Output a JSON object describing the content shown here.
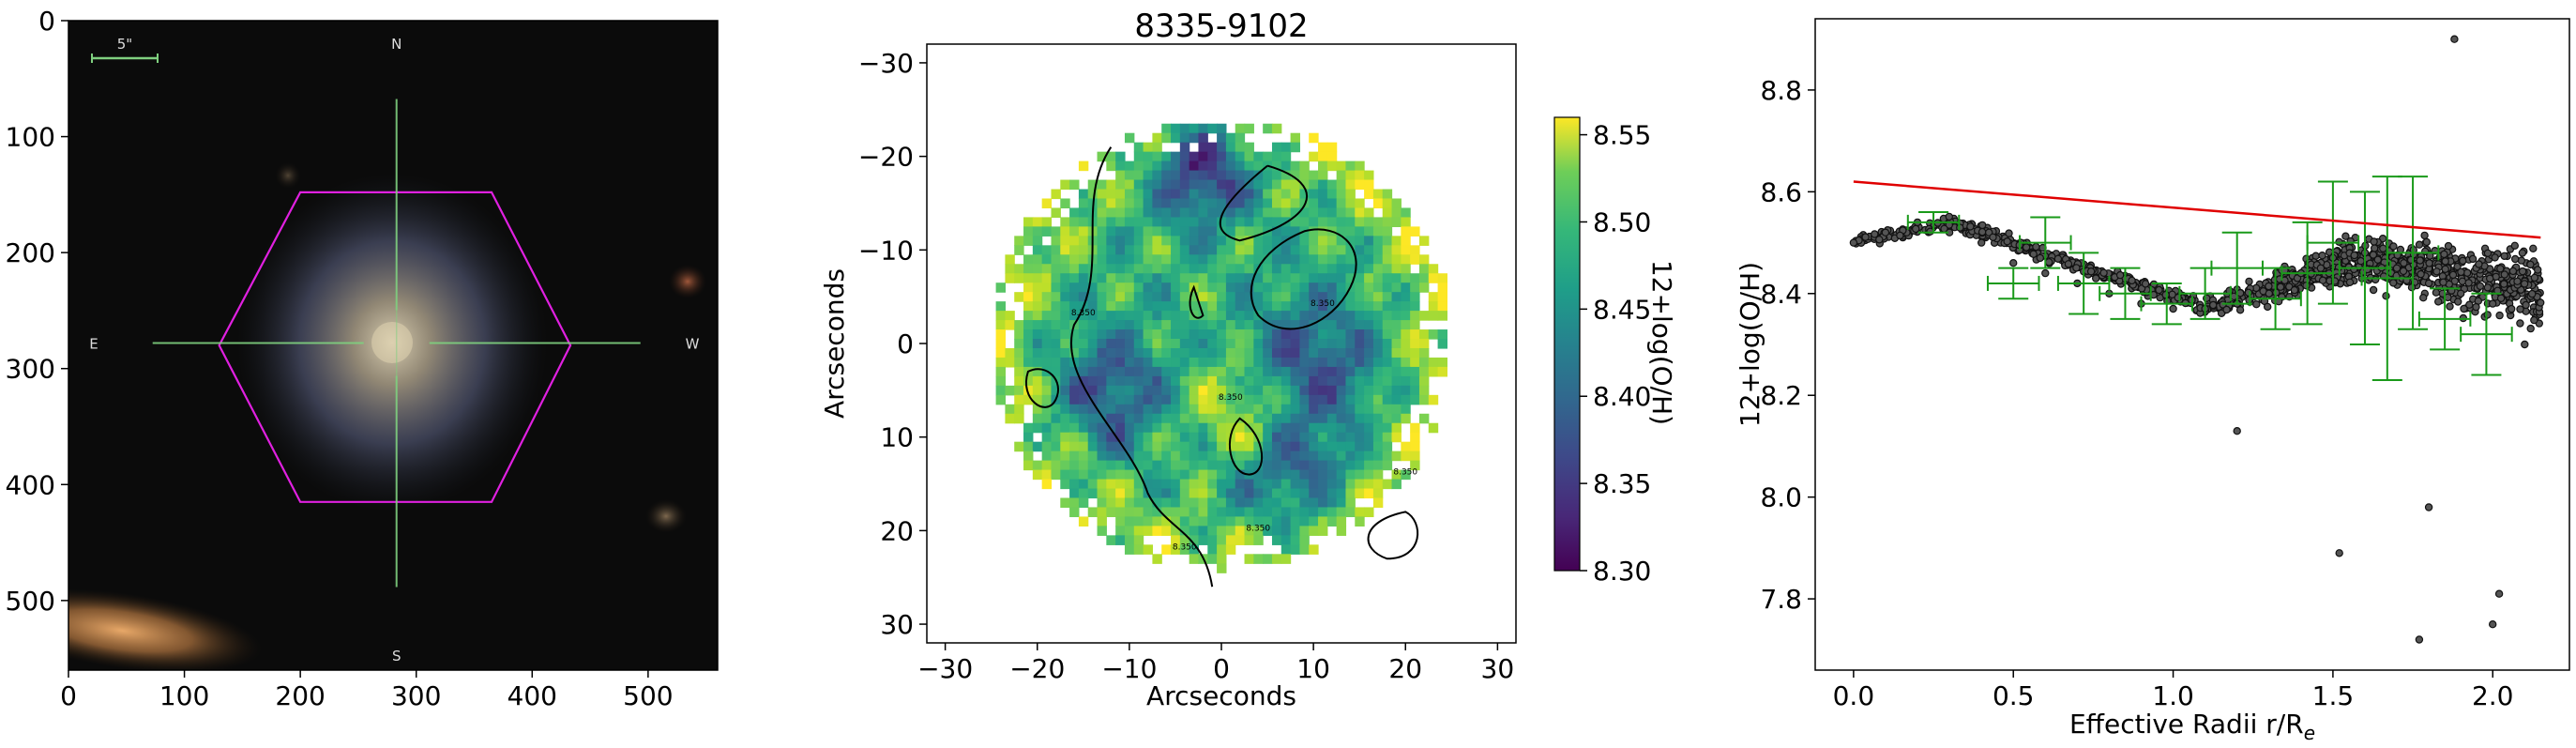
{
  "figure": {
    "background": "#ffffff"
  },
  "chart_data": [
    {
      "type": "image",
      "description": "SDSS optical cutout with MaNGA hexagonal IFU footprint",
      "title": "",
      "xlabel": "",
      "ylabel": "",
      "xlim": [
        0,
        560
      ],
      "ylim": [
        560,
        0
      ],
      "xticks": [
        "0",
        "100",
        "200",
        "300",
        "400",
        "500"
      ],
      "yticks": [
        "0",
        "100",
        "200",
        "300",
        "400",
        "500"
      ],
      "scale_bar_label": "5\"",
      "compass": {
        "north": "N",
        "south": "S",
        "east": "E",
        "west": "W"
      },
      "galaxy_center": [
        283,
        278
      ],
      "hexagon_vertices": [
        [
          200,
          148
        ],
        [
          365,
          148
        ],
        [
          433,
          280
        ],
        [
          365,
          415
        ],
        [
          200,
          415
        ],
        [
          130,
          280
        ]
      ],
      "colors": {
        "hexagon": "#e020e0",
        "crosshair": "#7fd07f",
        "scale_bar": "#7fd07f",
        "background": "#0b0b0b"
      }
    },
    {
      "type": "heatmap",
      "title": "8335-9102",
      "xlabel": "Arcseconds",
      "ylabel": "Arcseconds",
      "xlim": [
        -32,
        32
      ],
      "ylim": [
        32,
        -32
      ],
      "xticks": [
        "−30",
        "−20",
        "−10",
        "0",
        "10",
        "20",
        "30"
      ],
      "yticks": [
        "−30",
        "−20",
        "−10",
        "0",
        "10",
        "20",
        "30"
      ],
      "colorbar": {
        "label": "12+log(O/H)",
        "range": [
          8.3,
          8.56
        ],
        "ticks": [
          "8.30",
          "8.35",
          "8.40",
          "8.45",
          "8.50",
          "8.55"
        ],
        "colormap": "viridis"
      },
      "contour_level_label": "8.350",
      "extent_radius_arcsec": 24,
      "pixel_size_arcsec": 1
    },
    {
      "type": "scatter",
      "title": "",
      "xlabel": "Effective Radii r/R",
      "xlabel_sub": "e",
      "ylabel": "12+log(O/H)",
      "xlim": [
        -0.12,
        2.24
      ],
      "ylim": [
        7.66,
        8.94
      ],
      "xticks": [
        "0.0",
        "0.5",
        "1.0",
        "1.5",
        "2.0"
      ],
      "yticks": [
        "7.8",
        "8.0",
        "8.2",
        "8.4",
        "8.6",
        "8.8"
      ],
      "fit_line": {
        "x": [
          0.0,
          2.15
        ],
        "y": [
          8.62,
          8.51
        ],
        "color": "#e00000"
      },
      "binned_errorbars": [
        {
          "x": 0.25,
          "y": 8.54,
          "xerr": 0.08,
          "yerr": 0.02
        },
        {
          "x": 0.5,
          "y": 8.42,
          "xerr": 0.08,
          "yerr": 0.03
        },
        {
          "x": 0.6,
          "y": 8.5,
          "xerr": 0.08,
          "yerr": 0.05
        },
        {
          "x": 0.72,
          "y": 8.42,
          "xerr": 0.08,
          "yerr": 0.06
        },
        {
          "x": 0.85,
          "y": 8.4,
          "xerr": 0.08,
          "yerr": 0.05
        },
        {
          "x": 0.98,
          "y": 8.38,
          "xerr": 0.08,
          "yerr": 0.04
        },
        {
          "x": 1.1,
          "y": 8.4,
          "xerr": 0.08,
          "yerr": 0.05
        },
        {
          "x": 1.2,
          "y": 8.45,
          "xerr": 0.08,
          "yerr": 0.07
        },
        {
          "x": 1.32,
          "y": 8.39,
          "xerr": 0.08,
          "yerr": 0.06
        },
        {
          "x": 1.42,
          "y": 8.44,
          "xerr": 0.08,
          "yerr": 0.1
        },
        {
          "x": 1.5,
          "y": 8.5,
          "xerr": 0.08,
          "yerr": 0.12
        },
        {
          "x": 1.6,
          "y": 8.45,
          "xerr": 0.08,
          "yerr": 0.15
        },
        {
          "x": 1.67,
          "y": 8.43,
          "xerr": 0.08,
          "yerr": 0.2
        },
        {
          "x": 1.75,
          "y": 8.48,
          "xerr": 0.08,
          "yerr": 0.15
        },
        {
          "x": 1.85,
          "y": 8.35,
          "xerr": 0.08,
          "yerr": 0.06
        },
        {
          "x": 1.98,
          "y": 8.32,
          "xerr": 0.08,
          "yerr": 0.08
        }
      ],
      "scatter_points_sample": [
        {
          "x": 0.0,
          "y": 8.5
        },
        {
          "x": 0.1,
          "y": 8.52
        },
        {
          "x": 0.2,
          "y": 8.54
        },
        {
          "x": 0.3,
          "y": 8.52
        },
        {
          "x": 0.4,
          "y": 8.5
        },
        {
          "x": 0.5,
          "y": 8.46
        },
        {
          "x": 0.6,
          "y": 8.44
        },
        {
          "x": 0.7,
          "y": 8.42
        },
        {
          "x": 0.8,
          "y": 8.4
        },
        {
          "x": 0.9,
          "y": 8.38
        },
        {
          "x": 1.0,
          "y": 8.37
        },
        {
          "x": 1.1,
          "y": 8.37
        },
        {
          "x": 1.2,
          "y": 8.38
        },
        {
          "x": 1.3,
          "y": 8.4
        },
        {
          "x": 1.4,
          "y": 8.44
        },
        {
          "x": 1.5,
          "y": 8.47
        },
        {
          "x": 1.6,
          "y": 8.48
        },
        {
          "x": 1.7,
          "y": 8.45
        },
        {
          "x": 1.8,
          "y": 8.42
        },
        {
          "x": 1.9,
          "y": 8.4
        },
        {
          "x": 2.0,
          "y": 8.38
        },
        {
          "x": 2.1,
          "y": 8.3
        },
        {
          "x": 1.88,
          "y": 8.9
        },
        {
          "x": 1.77,
          "y": 7.72
        },
        {
          "x": 2.0,
          "y": 7.75
        },
        {
          "x": 2.02,
          "y": 7.81
        },
        {
          "x": 1.8,
          "y": 7.98
        },
        {
          "x": 1.52,
          "y": 7.89
        },
        {
          "x": 1.2,
          "y": 8.13
        }
      ],
      "colors": {
        "points": "#555555",
        "errorbars": "#1a9a1a"
      }
    }
  ]
}
